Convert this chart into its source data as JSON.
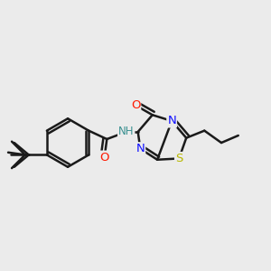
{
  "bg_color": "#ebebeb",
  "bond_color": "#1a1a1a",
  "line_width": 1.8,
  "atom_colors": {
    "O": "#ff1800",
    "N": "#1010ff",
    "S": "#b8b800",
    "H": "#3a9090"
  },
  "font_size": 8.5,
  "figsize": [
    3.0,
    3.0
  ],
  "dpi": 100
}
